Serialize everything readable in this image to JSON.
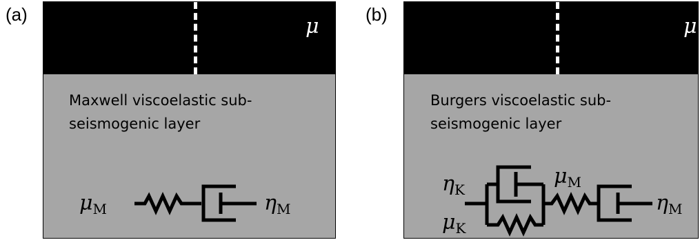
{
  "panel_a": {
    "label": "(a)",
    "top_symbol": "μ",
    "layer_line1": "Maxwell viscoelastic sub-",
    "layer_line2": "seismogenic layer",
    "spring_symbol": "μ",
    "spring_sub": "M",
    "dashpot_symbol": "η",
    "dashpot_sub": "M"
  },
  "panel_b": {
    "label": "(b)",
    "top_symbol": "μ",
    "layer_line1": "Burgers viscoelastic sub-",
    "layer_line2": "seismogenic layer",
    "kelvin_dashpot_symbol": "η",
    "kelvin_dashpot_sub": "K",
    "kelvin_spring_symbol": "μ",
    "kelvin_spring_sub": "K",
    "maxwell_spring_symbol": "μ",
    "maxwell_spring_sub": "M",
    "maxwell_dashpot_symbol": "η",
    "maxwell_dashpot_sub": "M"
  },
  "colors": {
    "upper_layer": "#000000",
    "lower_layer": "#a6a6a6",
    "fault": "#ffffff"
  }
}
